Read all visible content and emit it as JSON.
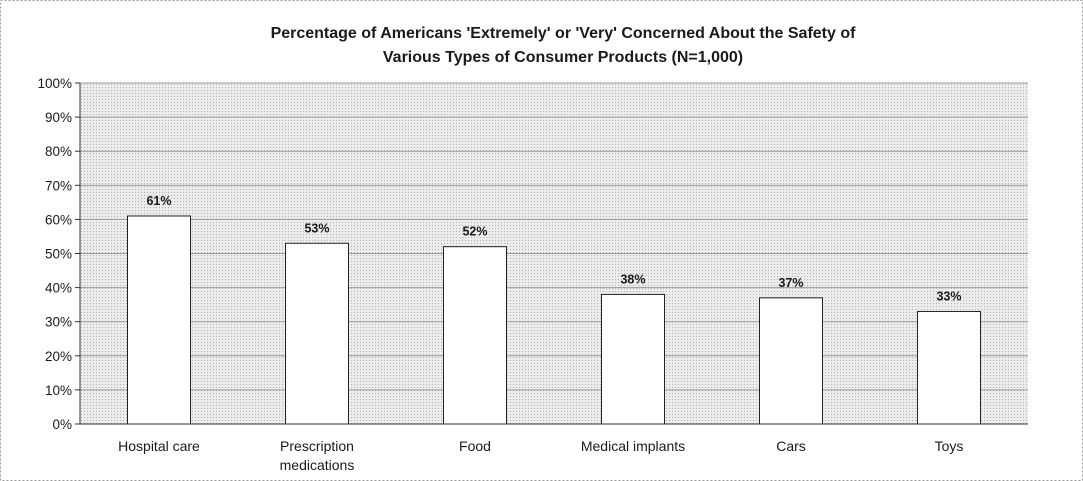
{
  "chart_data": {
    "type": "bar",
    "title_lines": [
      "Percentage of Americans 'Extremely' or 'Very' Concerned About the Safety of",
      "Various Types of Consumer Products (N=1,000)"
    ],
    "categories": [
      [
        "Hospital care"
      ],
      [
        "Prescription",
        "medications"
      ],
      [
        "Food"
      ],
      [
        "Medical implants"
      ],
      [
        "Cars"
      ],
      [
        "Toys"
      ]
    ],
    "values": [
      61,
      53,
      52,
      38,
      37,
      33
    ],
    "data_labels": [
      "61%",
      "53%",
      "52%",
      "38%",
      "37%",
      "33%"
    ],
    "ylim": [
      0,
      100
    ],
    "y_ticks": [
      0,
      10,
      20,
      30,
      40,
      50,
      60,
      70,
      80,
      90,
      100
    ],
    "y_tick_labels": [
      "0%",
      "10%",
      "20%",
      "30%",
      "40%",
      "50%",
      "60%",
      "70%",
      "80%",
      "90%",
      "100%"
    ],
    "grid": true,
    "legend": "none",
    "colors": {
      "plot_background": "#e6e6e6",
      "bar_fill": "#ffffff",
      "bar_stroke": "#222222",
      "gridline": "#9a9a9a"
    }
  }
}
